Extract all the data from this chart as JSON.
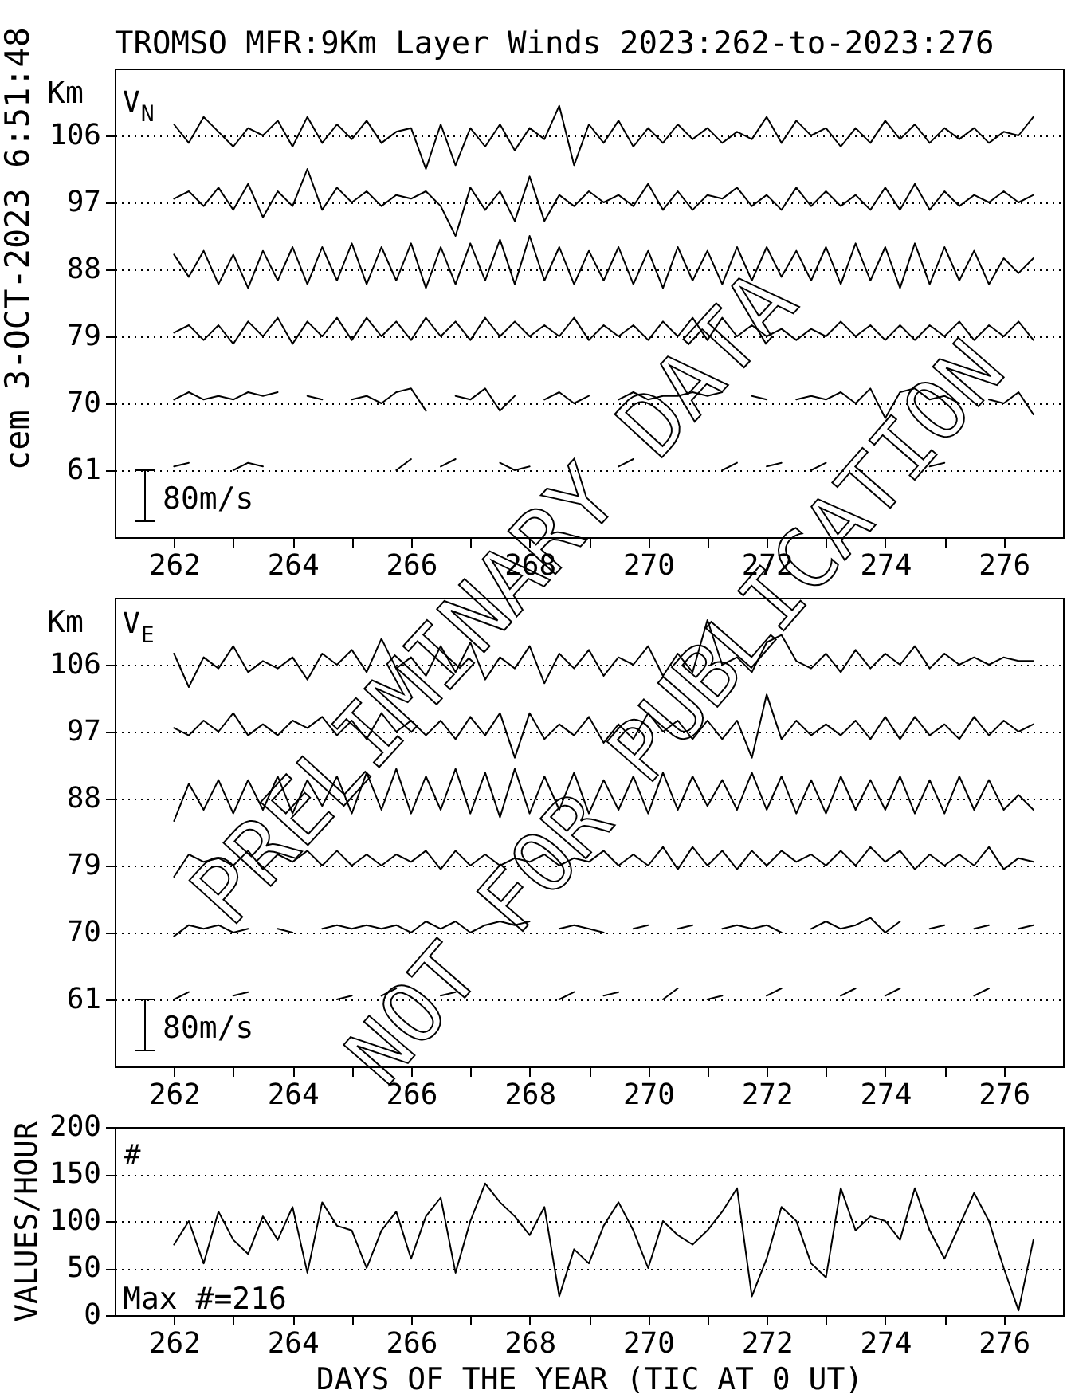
{
  "chart_data": [
    {
      "type": "line",
      "title": "TROMSO MFR:9Km Layer Winds 2023:262-to-2023:276",
      "ylabel": "Km",
      "annotations": [
        "cem 3-OCT-2023 6:51:48",
        "V$_{N}$",
        "80m/s"
      ],
      "x": [
        262,
        262.25,
        262.5,
        262.75,
        263,
        263.25,
        263.5,
        263.75,
        264,
        264.25,
        264.5,
        264.75,
        265,
        265.25,
        265.5,
        265.75,
        266,
        266.25,
        266.5,
        266.75,
        267,
        267.25,
        267.5,
        267.75,
        268,
        268.25,
        268.5,
        268.75,
        269,
        269.25,
        269.5,
        269.75,
        270,
        270.25,
        270.5,
        270.75,
        271,
        271.25,
        271.5,
        271.75,
        272,
        272.25,
        272.5,
        272.75,
        273,
        273.25,
        273.5,
        273.75,
        274,
        274.25,
        274.5,
        274.75,
        275,
        275.25,
        275.5,
        275.75,
        276,
        276.25,
        276.5
      ],
      "xlim": [
        261,
        277
      ],
      "xticks": [
        262,
        {
          "value": 263,
          "label": null
        },
        264,
        {
          "value": 265,
          "label": null
        },
        266,
        {
          "value": 267,
          "label": null
        },
        268,
        {
          "value": 269,
          "label": null
        },
        270,
        {
          "value": 271,
          "label": null
        },
        272,
        {
          "value": 273,
          "label": null
        },
        274,
        {
          "value": 275,
          "label": null
        },
        276
      ],
      "ylim": [
        52,
        115
      ],
      "yticks": [
        61,
        70,
        79,
        88,
        97,
        106
      ],
      "grid": "y",
      "series": [
        {
          "color": "#000000",
          "values": [
            107.5,
            105.0,
            108.5,
            106.5,
            104.5,
            107.0,
            106.0,
            108.0,
            104.5,
            108.5,
            105.0,
            107.5,
            105.5,
            108.0,
            105.0,
            106.5,
            107.0,
            101.5,
            107.5,
            102.0,
            107.0,
            104.5,
            107.5,
            104.0,
            107.0,
            105.5,
            110.0,
            102.0,
            107.5,
            105.0,
            108.0,
            104.5,
            107.0,
            105.0,
            107.5,
            105.5,
            107.0,
            105.0,
            106.5,
            105.5,
            108.5,
            105.0,
            108.0,
            106.0,
            107.0,
            104.5,
            107.0,
            105.0,
            108.0,
            105.5,
            107.5,
            105.0,
            107.0,
            105.5,
            107.0,
            105.0,
            106.5,
            106.0,
            108.5
          ]
        },
        {
          "color": "#000000",
          "values": [
            97.5,
            98.5,
            96.5,
            99.0,
            96.0,
            99.5,
            95.0,
            98.5,
            96.5,
            101.5,
            96.0,
            99.0,
            97.0,
            98.5,
            96.5,
            98.0,
            97.5,
            98.5,
            96.5,
            92.5,
            99.0,
            96.0,
            98.5,
            94.5,
            100.5,
            94.5,
            98.0,
            96.5,
            98.5,
            97.0,
            98.0,
            96.5,
            99.5,
            96.0,
            98.5,
            96.0,
            98.0,
            97.5,
            99.0,
            96.5,
            98.0,
            96.0,
            99.0,
            96.5,
            98.5,
            96.5,
            98.0,
            96.0,
            99.0,
            96.0,
            99.5,
            96.0,
            98.5,
            96.5,
            98.0,
            97.0,
            98.5,
            97.0,
            98.0
          ]
        },
        {
          "color": "#000000",
          "values": [
            90.0,
            87.0,
            90.5,
            86.0,
            90.0,
            85.5,
            90.5,
            86.5,
            91.0,
            86.0,
            91.0,
            86.5,
            91.5,
            86.0,
            91.0,
            86.5,
            91.5,
            85.5,
            91.0,
            86.0,
            91.5,
            86.5,
            92.0,
            86.0,
            92.5,
            86.5,
            91.0,
            86.0,
            90.5,
            86.5,
            91.0,
            86.0,
            90.5,
            85.5,
            91.0,
            86.5,
            90.5,
            86.0,
            91.0,
            86.5,
            91.0,
            87.0,
            90.5,
            86.5,
            91.0,
            86.0,
            91.5,
            86.5,
            91.0,
            85.5,
            91.5,
            86.0,
            91.0,
            86.5,
            90.5,
            86.0,
            89.5,
            87.5,
            89.5
          ]
        },
        {
          "color": "#000000",
          "values": [
            79.5,
            80.5,
            78.5,
            80.5,
            78.0,
            81.0,
            79.0,
            81.5,
            78.0,
            81.0,
            79.0,
            81.5,
            78.5,
            81.5,
            79.0,
            81.0,
            78.5,
            81.5,
            79.0,
            81.0,
            78.5,
            81.5,
            79.0,
            81.0,
            79.0,
            80.5,
            79.0,
            81.5,
            78.5,
            80.5,
            79.0,
            80.5,
            78.5,
            81.0,
            79.0,
            81.5,
            78.5,
            81.5,
            79.0,
            80.5,
            79.0,
            80.0,
            78.5,
            80.0,
            79.0,
            81.0,
            79.0,
            80.5,
            78.5,
            80.5,
            78.5,
            80.5,
            79.0,
            81.0,
            78.5,
            80.5,
            79.0,
            81.0,
            78.5
          ]
        },
        {
          "color": "#000000",
          "values": [
            70.5,
            71.5,
            70.5,
            71.0,
            70.5,
            71.5,
            71.0,
            71.5,
            null,
            71.0,
            70.5,
            null,
            70.5,
            71.0,
            70.0,
            71.5,
            72.0,
            69.0,
            null,
            71.0,
            70.5,
            72.0,
            69.0,
            71.0,
            null,
            70.5,
            71.5,
            70.0,
            71.0,
            null,
            70.5,
            71.5,
            70.5,
            71.0,
            71.0,
            71.5,
            71.0,
            71.5,
            null,
            71.0,
            70.5,
            null,
            70.5,
            71.0,
            70.5,
            71.5,
            70.0,
            72.0,
            68.0,
            71.5,
            72.0,
            70.5,
            71.0,
            70.0,
            null,
            70.5,
            70.0,
            71.5,
            68.5
          ]
        },
        {
          "color": "#000000",
          "values": [
            61.5,
            62.0,
            null,
            null,
            61.0,
            62.0,
            61.5,
            null,
            null,
            null,
            null,
            null,
            null,
            null,
            null,
            61.0,
            62.5,
            null,
            61.5,
            62.5,
            null,
            null,
            62.0,
            61.0,
            61.5,
            null,
            null,
            null,
            null,
            null,
            61.5,
            62.5,
            null,
            null,
            null,
            null,
            null,
            61.0,
            62.0,
            null,
            61.5,
            62.0,
            null,
            61.0,
            62.0,
            null,
            null,
            null,
            null,
            null,
            null,
            61.5,
            62.0,
            null,
            null,
            null,
            null,
            null,
            null
          ]
        }
      ]
    },
    {
      "type": "line",
      "ylabel": "Km",
      "annotations": [
        "V$_{E}$",
        "80m/s",
        "PRELIMINARY DATA",
        "NOT FOR PUBLICATION"
      ],
      "x": [
        262,
        262.25,
        262.5,
        262.75,
        263,
        263.25,
        263.5,
        263.75,
        264,
        264.25,
        264.5,
        264.75,
        265,
        265.25,
        265.5,
        265.75,
        266,
        266.25,
        266.5,
        266.75,
        267,
        267.25,
        267.5,
        267.75,
        268,
        268.25,
        268.5,
        268.75,
        269,
        269.25,
        269.5,
        269.75,
        270,
        270.25,
        270.5,
        270.75,
        271,
        271.25,
        271.5,
        271.75,
        272,
        272.25,
        272.5,
        272.75,
        273,
        273.25,
        273.5,
        273.75,
        274,
        274.25,
        274.5,
        274.75,
        275,
        275.25,
        275.5,
        275.75,
        276,
        276.25,
        276.5
      ],
      "xlim": [
        261,
        277
      ],
      "xticks": [
        262,
        {
          "value": 263,
          "label": null
        },
        264,
        {
          "value": 265,
          "label": null
        },
        266,
        {
          "value": 267,
          "label": null
        },
        268,
        {
          "value": 269,
          "label": null
        },
        270,
        {
          "value": 271,
          "label": null
        },
        272,
        {
          "value": 273,
          "label": null
        },
        274,
        {
          "value": 275,
          "label": null
        },
        276
      ],
      "ylim": [
        52,
        115
      ],
      "yticks": [
        61,
        70,
        79,
        88,
        97,
        106
      ],
      "grid": "y",
      "series": [
        {
          "color": "#000000",
          "values": [
            107.5,
            103.0,
            107.0,
            105.5,
            108.5,
            105.0,
            106.5,
            105.5,
            107.0,
            104.0,
            107.5,
            106.0,
            108.0,
            105.0,
            109.5,
            105.5,
            107.0,
            104.5,
            108.5,
            105.0,
            109.0,
            104.0,
            107.0,
            105.5,
            108.5,
            103.5,
            107.5,
            105.5,
            108.0,
            104.5,
            107.0,
            106.0,
            108.5,
            104.5,
            107.5,
            105.0,
            112.0,
            106.0,
            107.0,
            105.0,
            109.0,
            110.0,
            106.5,
            105.5,
            107.5,
            105.0,
            108.0,
            105.5,
            107.5,
            106.0,
            108.5,
            105.5,
            107.5,
            106.0,
            107.0,
            106.0,
            107.0,
            106.5,
            106.5
          ]
        },
        {
          "color": "#000000",
          "values": [
            97.5,
            96.5,
            98.5,
            97.0,
            99.5,
            96.5,
            98.0,
            96.5,
            98.5,
            97.5,
            99.0,
            96.5,
            98.5,
            96.0,
            99.5,
            97.0,
            98.5,
            96.5,
            98.5,
            96.0,
            99.0,
            96.5,
            99.5,
            93.5,
            99.5,
            96.0,
            98.0,
            96.5,
            99.0,
            95.5,
            98.0,
            96.0,
            99.5,
            97.0,
            98.5,
            96.0,
            98.5,
            96.0,
            98.5,
            93.5,
            102.0,
            96.0,
            98.5,
            96.5,
            98.0,
            96.5,
            98.5,
            96.0,
            99.0,
            96.0,
            99.0,
            96.5,
            98.0,
            96.0,
            99.0,
            96.5,
            98.5,
            97.0,
            98.0
          ]
        },
        {
          "color": "#000000",
          "values": [
            85.0,
            90.0,
            86.5,
            90.5,
            86.0,
            90.5,
            86.5,
            91.0,
            86.0,
            90.5,
            87.0,
            91.0,
            86.0,
            91.5,
            86.5,
            92.0,
            86.0,
            91.0,
            86.5,
            92.0,
            86.0,
            91.5,
            85.5,
            92.0,
            86.0,
            91.0,
            86.5,
            91.5,
            86.0,
            90.5,
            86.5,
            91.0,
            86.0,
            91.5,
            86.5,
            91.0,
            87.0,
            90.5,
            86.5,
            91.5,
            86.5,
            91.0,
            86.0,
            90.5,
            86.0,
            91.0,
            86.5,
            90.5,
            86.5,
            91.0,
            86.0,
            90.5,
            86.0,
            91.0,
            86.5,
            90.5,
            86.5,
            88.5,
            86.5
          ]
        },
        {
          "color": "#000000",
          "values": [
            77.5,
            80.5,
            79.5,
            80.0,
            79.0,
            81.0,
            78.5,
            80.5,
            79.5,
            81.0,
            79.0,
            81.0,
            79.0,
            80.5,
            79.0,
            80.5,
            79.5,
            81.0,
            78.5,
            81.0,
            79.0,
            80.5,
            79.0,
            80.0,
            79.5,
            80.5,
            79.0,
            80.0,
            79.5,
            81.0,
            79.0,
            80.5,
            79.0,
            81.5,
            78.5,
            81.5,
            79.0,
            81.0,
            78.5,
            81.0,
            79.0,
            81.0,
            79.5,
            80.5,
            79.0,
            81.0,
            79.0,
            81.5,
            79.5,
            81.0,
            78.5,
            80.5,
            79.0,
            80.5,
            79.0,
            81.5,
            78.5,
            80.0,
            79.5
          ]
        },
        {
          "color": "#000000",
          "values": [
            69.5,
            71.0,
            70.5,
            71.0,
            70.0,
            70.5,
            null,
            70.5,
            70.0,
            null,
            70.5,
            71.0,
            70.5,
            71.0,
            70.5,
            71.0,
            70.0,
            71.5,
            70.5,
            71.5,
            70.0,
            71.0,
            71.5,
            71.0,
            71.5,
            null,
            70.5,
            71.0,
            70.5,
            70.0,
            null,
            70.5,
            71.0,
            null,
            70.5,
            71.0,
            null,
            70.5,
            71.0,
            70.5,
            71.0,
            70.0,
            null,
            70.5,
            71.5,
            70.5,
            71.0,
            72.0,
            70.0,
            71.5,
            null,
            70.5,
            71.0,
            null,
            70.5,
            71.0,
            null,
            70.5,
            71.0
          ]
        },
        {
          "color": "#000000",
          "values": [
            61.0,
            62.0,
            null,
            null,
            61.5,
            62.0,
            null,
            null,
            null,
            null,
            null,
            61.0,
            61.5,
            null,
            61.5,
            62.5,
            null,
            null,
            61.5,
            62.0,
            null,
            null,
            null,
            null,
            null,
            null,
            61.0,
            62.0,
            null,
            61.5,
            62.0,
            null,
            null,
            61.0,
            62.5,
            null,
            61.0,
            61.5,
            null,
            null,
            61.5,
            62.5,
            null,
            null,
            null,
            61.5,
            62.5,
            null,
            61.5,
            62.5,
            null,
            null,
            null,
            null,
            61.5,
            62.5,
            null,
            null,
            null
          ]
        }
      ]
    },
    {
      "type": "line",
      "xlabel": "DAYS OF THE YEAR (TIC AT 0 UT)",
      "ylabel": "VALUES/HOUR",
      "annotations": [
        "#",
        "Max #=216"
      ],
      "x": [
        262,
        262.25,
        262.5,
        262.75,
        263,
        263.25,
        263.5,
        263.75,
        264,
        264.25,
        264.5,
        264.75,
        265,
        265.25,
        265.5,
        265.75,
        266,
        266.25,
        266.5,
        266.75,
        267,
        267.25,
        267.5,
        267.75,
        268,
        268.25,
        268.5,
        268.75,
        269,
        269.25,
        269.5,
        269.75,
        270,
        270.25,
        270.5,
        270.75,
        271,
        271.25,
        271.5,
        271.75,
        272,
        272.25,
        272.5,
        272.75,
        273,
        273.25,
        273.5,
        273.75,
        274,
        274.25,
        274.5,
        274.75,
        275,
        275.25,
        275.5,
        275.75,
        276,
        276.25,
        276.5
      ],
      "xlim": [
        261,
        277
      ],
      "xticks": [
        262,
        {
          "value": 263,
          "label": null
        },
        264,
        {
          "value": 265,
          "label": null
        },
        266,
        {
          "value": 267,
          "label": null
        },
        268,
        {
          "value": 269,
          "label": null
        },
        270,
        {
          "value": 271,
          "label": null
        },
        272,
        {
          "value": 273,
          "label": null
        },
        274,
        {
          "value": 275,
          "label": null
        },
        276
      ],
      "ylim": [
        0,
        200
      ],
      "yticks": [
        0,
        50,
        100,
        150,
        200
      ],
      "grid": "y",
      "color": "#000000",
      "values": [
        75,
        100,
        55,
        110,
        80,
        65,
        105,
        80,
        115,
        45,
        120,
        95,
        90,
        50,
        90,
        110,
        60,
        105,
        125,
        45,
        100,
        140,
        120,
        105,
        85,
        115,
        20,
        70,
        55,
        95,
        120,
        90,
        50,
        100,
        85,
        75,
        90,
        110,
        135,
        20,
        60,
        115,
        100,
        55,
        40,
        135,
        90,
        105,
        100,
        80,
        135,
        90,
        60,
        95,
        130,
        100,
        50,
        5,
        80
      ]
    }
  ]
}
